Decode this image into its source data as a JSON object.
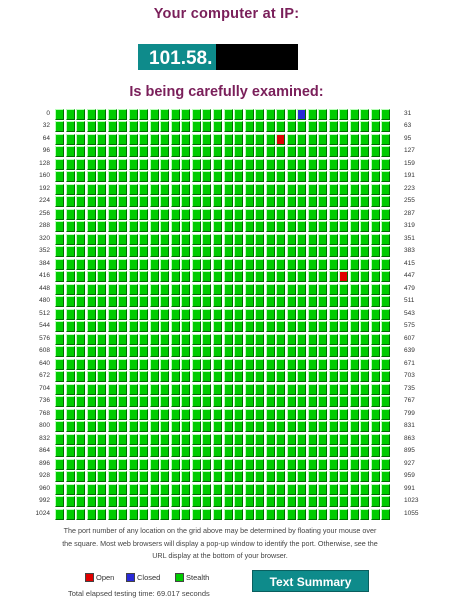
{
  "header": {
    "title": "Your computer at IP:",
    "ip_visible": "101.58.",
    "subtitle": "Is being carefully examined:"
  },
  "grid": {
    "columns": 32,
    "rows": 33,
    "first_port": 0,
    "last_port": 1055,
    "row_labels_left": [
      "0",
      "32",
      "64",
      "96",
      "128",
      "160",
      "192",
      "224",
      "256",
      "288",
      "320",
      "352",
      "384",
      "416",
      "448",
      "480",
      "512",
      "544",
      "576",
      "608",
      "640",
      "672",
      "704",
      "736",
      "768",
      "800",
      "832",
      "864",
      "896",
      "928",
      "960",
      "992",
      "1024"
    ],
    "row_labels_right": [
      "31",
      "63",
      "95",
      "127",
      "159",
      "191",
      "223",
      "255",
      "287",
      "319",
      "351",
      "383",
      "415",
      "447",
      "479",
      "511",
      "543",
      "575",
      "607",
      "639",
      "671",
      "703",
      "735",
      "767",
      "799",
      "831",
      "863",
      "895",
      "927",
      "959",
      "991",
      "1023",
      "1055"
    ],
    "open_ports": [
      85,
      443
    ],
    "closed_ports": [
      23
    ],
    "colors": {
      "stealth": "#00cc00",
      "open": "#e00000",
      "closed": "#2a2ad8"
    }
  },
  "note": "The port number of any location on the grid above may be determined by floating your mouse over the square. Most web browsers will display a pop-up window to identify the port. Otherwise, see the URL display at the bottom of your browser.",
  "legend": {
    "open_label": "Open",
    "closed_label": "Closed",
    "stealth_label": "Stealth"
  },
  "elapsed": "Total elapsed testing time: 69.017 seconds",
  "button": {
    "label": "Text Summary"
  }
}
